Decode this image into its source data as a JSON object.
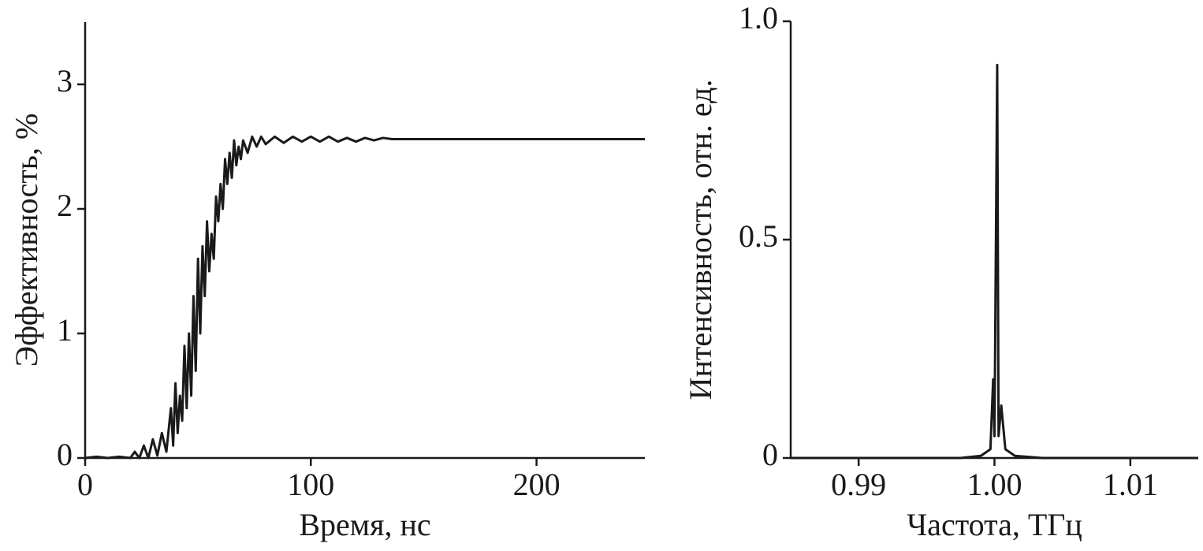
{
  "chart_data": [
    {
      "type": "line",
      "xlabel": "Время, нс",
      "ylabel": "Эффективность, %",
      "color": "#1a1a1a",
      "x": [
        0,
        5,
        10,
        15,
        20,
        22,
        24,
        26,
        28,
        30,
        32,
        34,
        36,
        38,
        39,
        40,
        41,
        42,
        43,
        44,
        45,
        46,
        47,
        48,
        49,
        50,
        51,
        52,
        53,
        54,
        55,
        56,
        57,
        58,
        59,
        60,
        61,
        62,
        63,
        64,
        65,
        66,
        67,
        68,
        69,
        70,
        72,
        74,
        76,
        78,
        80,
        84,
        88,
        92,
        96,
        100,
        104,
        108,
        112,
        116,
        120,
        124,
        128,
        132,
        136,
        248
      ],
      "values": [
        0,
        0.01,
        0,
        0.01,
        0,
        0.05,
        0,
        0.1,
        0,
        0.15,
        0.02,
        0.2,
        0.05,
        0.4,
        0.1,
        0.6,
        0.2,
        0.5,
        0.3,
        0.9,
        0.4,
        1.0,
        0.5,
        1.3,
        0.7,
        1.6,
        1.0,
        1.7,
        1.3,
        1.9,
        1.5,
        1.8,
        1.6,
        2.1,
        1.9,
        2.2,
        2.0,
        2.4,
        2.2,
        2.45,
        2.25,
        2.55,
        2.35,
        2.5,
        2.4,
        2.55,
        2.45,
        2.58,
        2.5,
        2.58,
        2.52,
        2.58,
        2.53,
        2.58,
        2.54,
        2.58,
        2.54,
        2.58,
        2.54,
        2.57,
        2.54,
        2.57,
        2.55,
        2.57,
        2.56,
        2.56
      ],
      "xlim": [
        0,
        248
      ],
      "ylim": [
        0,
        3.5
      ],
      "xticks": [
        0,
        100,
        200
      ],
      "yticks": [
        0,
        1,
        2,
        3
      ]
    },
    {
      "type": "line",
      "xlabel": "Частота, ТГц",
      "ylabel": "Интенсивность, отн. ед.",
      "color": "#1a1a1a",
      "x": [
        0.985,
        0.9975,
        0.999,
        0.9997,
        0.9999,
        1.0,
        1.0002,
        1.0003,
        1.0005,
        1.0008,
        1.0015,
        1.0035,
        1.015
      ],
      "values": [
        0,
        0,
        0.005,
        0.02,
        0.18,
        0.05,
        0.9,
        0.05,
        0.12,
        0.02,
        0.005,
        0,
        0
      ],
      "xlim": [
        0.985,
        1.015
      ],
      "ylim": [
        0,
        1
      ],
      "xticks": [
        0.99,
        {
          "value": 1,
          "label": "1.00"
        },
        1.01
      ],
      "yticks": [
        0,
        0.5,
        {
          "value": 1,
          "label": "1.0"
        }
      ]
    }
  ]
}
